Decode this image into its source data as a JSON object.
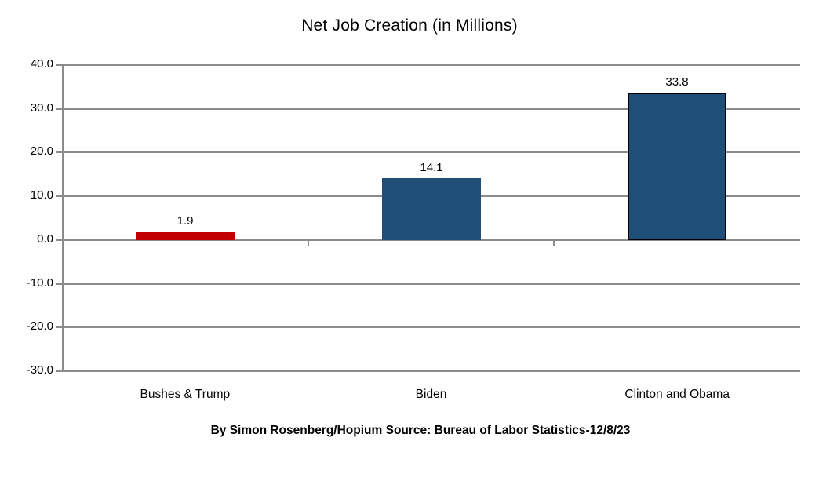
{
  "chart_data": {
    "type": "bar",
    "title": "Net Job Creation (in Millions)",
    "categories": [
      "Bushes & Trump",
      "Biden",
      "Clinton and Obama"
    ],
    "values": [
      1.9,
      14.1,
      33.8
    ],
    "value_labels": [
      "1.9",
      "14.1",
      "33.8"
    ],
    "bar_colors": [
      "#C00000",
      "#1F4E79",
      "#1F4E79"
    ],
    "bar_outlined": [
      false,
      false,
      true
    ],
    "outline_color": "#000000",
    "ylim": [
      -30,
      40
    ],
    "ytick_step": 10,
    "ytick_labels": [
      "40.0",
      "30.0",
      "20.0",
      "10.0",
      "0.0",
      "-10.0",
      "-20.0",
      "-30.0"
    ],
    "grid": true,
    "legend": "none",
    "axis_color": "#8C8C8C",
    "background_color": "#FFFFFF",
    "caption": "By Simon Rosenberg/Hopium Source: Bureau of Labor Statistics-12/8/23"
  }
}
